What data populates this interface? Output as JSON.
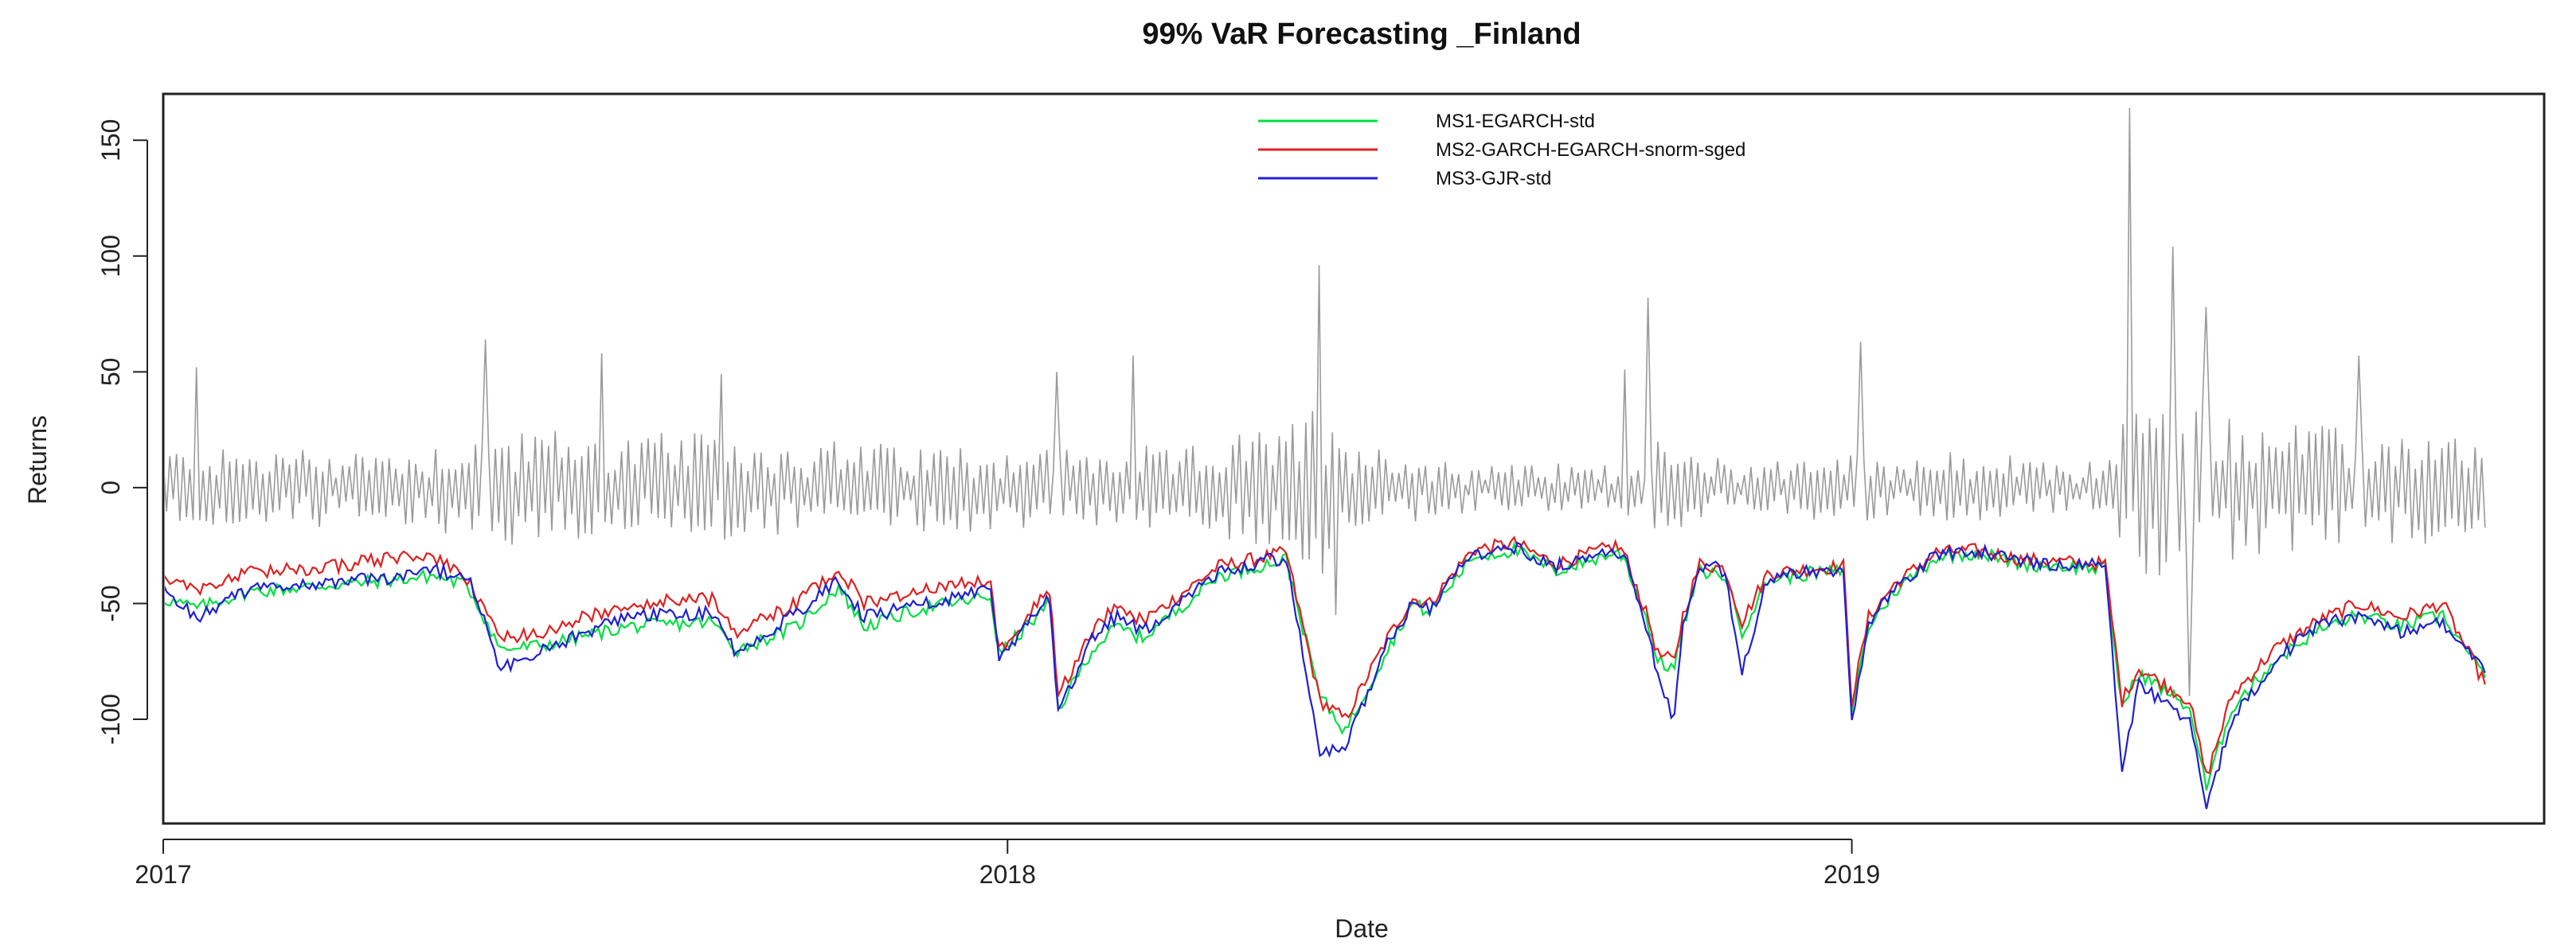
{
  "chart_data": {
    "type": "line",
    "title": "99% VaR Forecasting _Finland",
    "xlabel": "Date",
    "ylabel": "Returns",
    "xlim": [
      2017.0,
      2019.82
    ],
    "ylim": [
      -145,
      170
    ],
    "xticks": [
      2017,
      2018,
      2019
    ],
    "xtick_labels": [
      "2017",
      "2018",
      "2019"
    ],
    "yticks": [
      -100,
      -50,
      0,
      50,
      100,
      150
    ],
    "ytick_labels": [
      "-100",
      "-50",
      "0",
      "50",
      "100",
      "150"
    ],
    "legend_position": "top-center",
    "returns_series": {
      "name": "Returns",
      "color": "#9a9a9a",
      "n_points": 700,
      "x_start": 2017.0,
      "x_end": 2019.75,
      "amplitude_profile": {
        "x": [
          2017.0,
          2017.3,
          2017.4,
          2017.55,
          2017.8,
          2018.0,
          2018.2,
          2018.33,
          2018.38,
          2018.42,
          2018.5,
          2018.7,
          2018.75,
          2018.85,
          2019.0,
          2019.2,
          2019.3,
          2019.32,
          2019.4,
          2019.5,
          2019.6,
          2019.75
        ],
        "y": [
          17,
          17,
          26,
          24,
          20,
          18,
          16,
          28,
          40,
          22,
          12,
          9,
          20,
          12,
          15,
          13,
          10,
          38,
          40,
          30,
          24,
          22
        ]
      },
      "spikes": [
        {
          "x": 2017.04,
          "y": 52
        },
        {
          "x": 2017.38,
          "y": 64
        },
        {
          "x": 2017.52,
          "y": 58
        },
        {
          "x": 2017.66,
          "y": 49
        },
        {
          "x": 2018.06,
          "y": 50
        },
        {
          "x": 2018.15,
          "y": 57
        },
        {
          "x": 2018.37,
          "y": 96
        },
        {
          "x": 2018.39,
          "y": -55
        },
        {
          "x": 2018.73,
          "y": 51
        },
        {
          "x": 2018.76,
          "y": 82
        },
        {
          "x": 2019.01,
          "y": 63
        },
        {
          "x": 2019.33,
          "y": 164
        },
        {
          "x": 2019.38,
          "y": 104
        },
        {
          "x": 2019.4,
          "y": -90
        },
        {
          "x": 2019.42,
          "y": 78
        },
        {
          "x": 2019.6,
          "y": 57
        }
      ]
    },
    "series": [
      {
        "name": "MS1-EGARCH-std",
        "color": "#00e040",
        "x": [
          2017.0,
          2017.04,
          2017.1,
          2017.2,
          2017.3,
          2017.32,
          2017.36,
          2017.4,
          2017.45,
          2017.55,
          2017.65,
          2017.68,
          2017.75,
          2017.8,
          2017.83,
          2017.9,
          2017.98,
          2017.99,
          2018.05,
          2018.06,
          2018.1,
          2018.13,
          2018.16,
          2018.25,
          2018.33,
          2018.37,
          2018.4,
          2018.45,
          2018.48,
          2018.5,
          2018.55,
          2018.6,
          2018.65,
          2018.72,
          2018.73,
          2018.76,
          2018.77,
          2018.79,
          2018.8,
          2018.82,
          2018.85,
          2018.87,
          2018.9,
          2018.95,
          2018.99,
          2019.0,
          2019.02,
          2019.05,
          2019.1,
          2019.15,
          2019.2,
          2019.3,
          2019.32,
          2019.34,
          2019.4,
          2019.42,
          2019.45,
          2019.5,
          2019.55,
          2019.6,
          2019.65,
          2019.7,
          2019.75
        ],
        "y": [
          -48,
          -52,
          -45,
          -42,
          -39,
          -38,
          -42,
          -70,
          -68,
          -60,
          -58,
          -70,
          -60,
          -43,
          -60,
          -52,
          -47,
          -72,
          -50,
          -96,
          -70,
          -60,
          -65,
          -38,
          -31,
          -90,
          -105,
          -70,
          -50,
          -54,
          -30,
          -27,
          -36,
          -28,
          -30,
          -60,
          -75,
          -78,
          -60,
          -36,
          -38,
          -62,
          -40,
          -37,
          -36,
          -95,
          -60,
          -45,
          -30,
          -28,
          -33,
          -35,
          -95,
          -80,
          -95,
          -130,
          -95,
          -75,
          -62,
          -55,
          -60,
          -55,
          -82
        ]
      },
      {
        "name": "MS2-GARCH-EGARCH-snorm-sged",
        "color": "#e02020",
        "x": [
          2017.0,
          2017.04,
          2017.1,
          2017.2,
          2017.3,
          2017.32,
          2017.36,
          2017.4,
          2017.45,
          2017.55,
          2017.65,
          2017.68,
          2017.75,
          2017.8,
          2017.83,
          2017.9,
          2017.98,
          2017.99,
          2018.05,
          2018.06,
          2018.1,
          2018.13,
          2018.16,
          2018.25,
          2018.33,
          2018.37,
          2018.4,
          2018.45,
          2018.48,
          2018.5,
          2018.55,
          2018.6,
          2018.65,
          2018.72,
          2018.73,
          2018.76,
          2018.77,
          2018.79,
          2018.8,
          2018.82,
          2018.85,
          2018.87,
          2018.9,
          2018.95,
          2018.99,
          2019.0,
          2019.02,
          2019.05,
          2019.1,
          2019.15,
          2019.2,
          2019.3,
          2019.32,
          2019.34,
          2019.4,
          2019.42,
          2019.45,
          2019.5,
          2019.55,
          2019.6,
          2019.65,
          2019.7,
          2019.75
        ],
        "y": [
          -38,
          -44,
          -37,
          -34,
          -29,
          -30,
          -40,
          -65,
          -62,
          -50,
          -48,
          -62,
          -50,
          -35,
          -50,
          -44,
          -40,
          -70,
          -44,
          -90,
          -62,
          -50,
          -58,
          -34,
          -28,
          -92,
          -100,
          -65,
          -48,
          -50,
          -27,
          -24,
          -33,
          -25,
          -28,
          -58,
          -72,
          -75,
          -55,
          -33,
          -35,
          -58,
          -37,
          -35,
          -34,
          -92,
          -56,
          -42,
          -28,
          -27,
          -31,
          -33,
          -92,
          -78,
          -92,
          -125,
          -90,
          -70,
          -58,
          -50,
          -56,
          -50,
          -85
        ]
      },
      {
        "name": "MS3-GJR-std",
        "color": "#2020d0",
        "x": [
          2017.0,
          2017.04,
          2017.1,
          2017.2,
          2017.3,
          2017.32,
          2017.36,
          2017.4,
          2017.45,
          2017.55,
          2017.65,
          2017.68,
          2017.75,
          2017.8,
          2017.83,
          2017.9,
          2017.98,
          2017.99,
          2018.05,
          2018.06,
          2018.1,
          2018.13,
          2018.16,
          2018.25,
          2018.33,
          2018.37,
          2018.4,
          2018.45,
          2018.48,
          2018.5,
          2018.55,
          2018.6,
          2018.65,
          2018.72,
          2018.73,
          2018.76,
          2018.77,
          2018.79,
          2018.8,
          2018.82,
          2018.85,
          2018.87,
          2018.9,
          2018.95,
          2018.99,
          2019.0,
          2019.02,
          2019.05,
          2019.1,
          2019.15,
          2019.2,
          2019.3,
          2019.32,
          2019.34,
          2019.4,
          2019.42,
          2019.45,
          2019.5,
          2019.55,
          2019.6,
          2019.65,
          2019.7,
          2019.75
        ],
        "y": [
          -44,
          -56,
          -44,
          -41,
          -38,
          -36,
          -38,
          -78,
          -70,
          -55,
          -54,
          -72,
          -54,
          -40,
          -56,
          -50,
          -44,
          -74,
          -48,
          -98,
          -66,
          -55,
          -62,
          -36,
          -30,
          -115,
          -112,
          -68,
          -50,
          -52,
          -29,
          -26,
          -34,
          -27,
          -29,
          -65,
          -82,
          -100,
          -58,
          -33,
          -36,
          -80,
          -40,
          -36,
          -35,
          -100,
          -60,
          -44,
          -29,
          -27,
          -32,
          -34,
          -120,
          -85,
          -100,
          -140,
          -100,
          -75,
          -60,
          -55,
          -62,
          -58,
          -80
        ]
      }
    ]
  }
}
